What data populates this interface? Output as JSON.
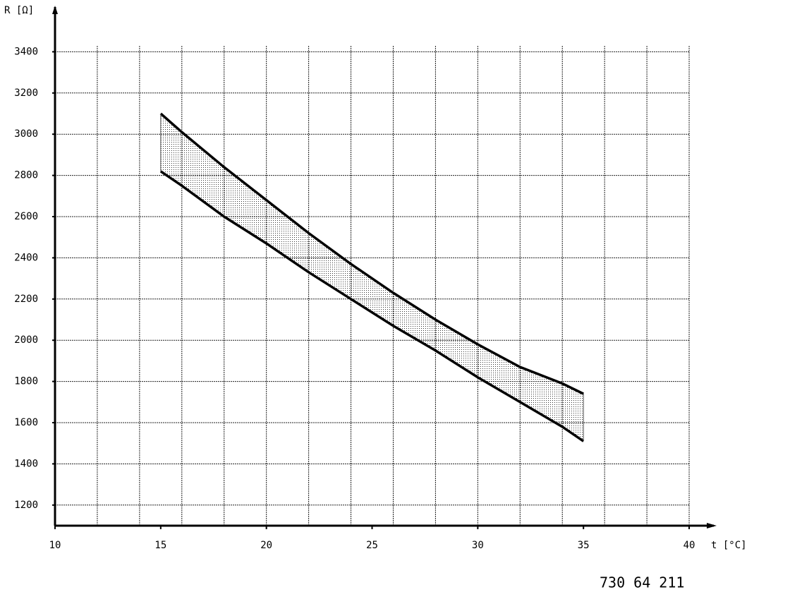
{
  "chart_data": {
    "type": "band",
    "y_label": "R [Ω]",
    "x_label": "t [°C]",
    "footnote": "730 64 211",
    "x": [
      15,
      16,
      18,
      20,
      22,
      24,
      26,
      28,
      30,
      32,
      34,
      35
    ],
    "series": [
      {
        "name": "upper",
        "color": "#000000",
        "values": [
          3100,
          3010,
          2840,
          2680,
          2520,
          2370,
          2230,
          2100,
          1980,
          1870,
          1790,
          1740
        ]
      },
      {
        "name": "lower",
        "color": "#000000",
        "values": [
          2820,
          2750,
          2600,
          2470,
          2330,
          2200,
          2070,
          1950,
          1820,
          1700,
          1580,
          1510
        ]
      }
    ],
    "xlim": [
      10,
      41
    ],
    "ylim": [
      1100,
      3600
    ],
    "xticks": [
      10,
      15,
      20,
      25,
      30,
      35,
      40
    ],
    "yticks": [
      1200,
      1400,
      1600,
      1800,
      2000,
      2200,
      2400,
      2600,
      2800,
      3000,
      3200,
      3400
    ],
    "xgrid": [
      12,
      14,
      16,
      18,
      20,
      22,
      24,
      26,
      28,
      30,
      32,
      34,
      36,
      38,
      40
    ],
    "grid": true
  }
}
